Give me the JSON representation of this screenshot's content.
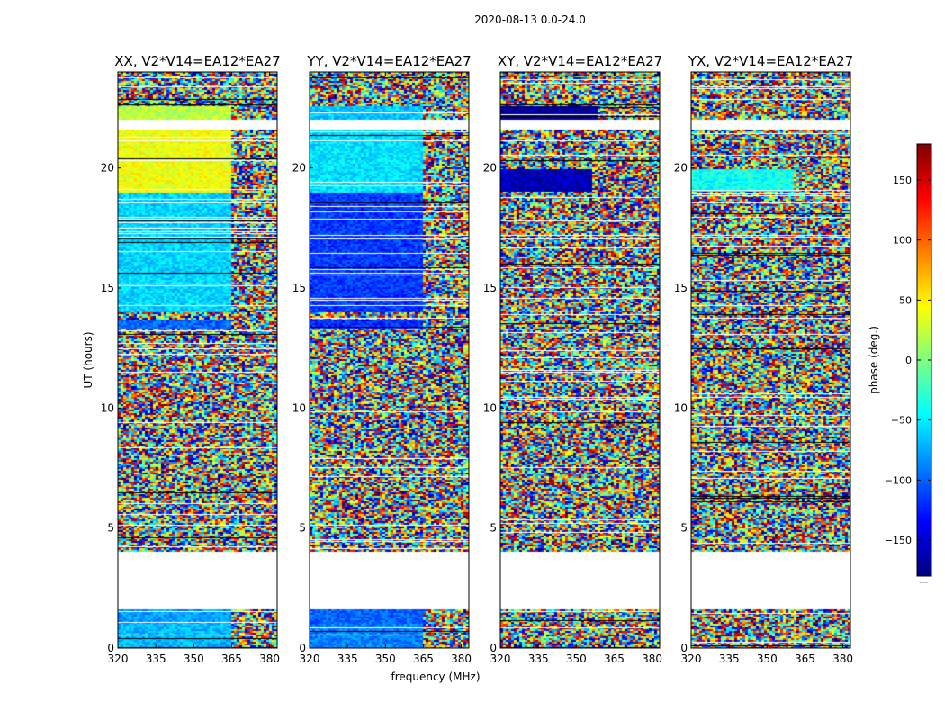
{
  "figure": {
    "suptitle": "2020-08-13 0.0-24.0",
    "xlabel": "frequency (MHz)",
    "ylabel": "UT (hours)",
    "colorbar_label": "phase (deg.)",
    "colorbar_dots": "....."
  },
  "colormap": "jet",
  "chart_data": [
    {
      "type": "heatmap",
      "title": "XX, V2*V14=EA12*EA27",
      "xlim": [
        320,
        383
      ],
      "ylim": [
        0,
        24
      ],
      "xticks": [
        320,
        335,
        350,
        365,
        380
      ],
      "yticks": [
        0,
        5,
        10,
        15,
        20
      ],
      "value_range": [
        -180,
        180
      ],
      "bands": [
        {
          "t": [
            0.0,
            1.0
          ],
          "f_split": 364,
          "low": -70,
          "high": "noise"
        },
        {
          "t": [
            1.0,
            1.6
          ],
          "f_split": 364,
          "low": -80,
          "high": "noise"
        },
        {
          "t": [
            4.0,
            11.0
          ],
          "f_split": 320,
          "low": "noise",
          "high": "noise"
        },
        {
          "t": [
            11.0,
            14.0
          ],
          "f_split": 320,
          "low": "noise",
          "high": "noise"
        },
        {
          "t": [
            13.3,
            13.7
          ],
          "f_split": 364,
          "low": -100,
          "high": "noise"
        },
        {
          "t": [
            14.0,
            19.0
          ],
          "f_split": 364,
          "low": -60,
          "high": "noise"
        },
        {
          "t": [
            19.0,
            21.6
          ],
          "f_split": 364,
          "low": 40,
          "high": "noise"
        },
        {
          "t": [
            22.0,
            22.6
          ],
          "f_split": 364,
          "low": 20,
          "high": "noise"
        },
        {
          "t": [
            22.6,
            24.0
          ],
          "f_split": 320,
          "low": "noise",
          "high": "noise"
        }
      ]
    },
    {
      "type": "heatmap",
      "title": "YY, V2*V14=EA12*EA27",
      "xlim": [
        320,
        383
      ],
      "ylim": [
        0,
        24
      ],
      "xticks": [
        320,
        335,
        350,
        365,
        380
      ],
      "yticks": [
        0,
        5,
        10,
        15,
        20
      ],
      "value_range": [
        -180,
        180
      ],
      "bands": [
        {
          "t": [
            0.0,
            1.0
          ],
          "f_split": 364,
          "low": -90,
          "high": "noise"
        },
        {
          "t": [
            1.0,
            1.6
          ],
          "f_split": 364,
          "low": -100,
          "high": "noise"
        },
        {
          "t": [
            4.0,
            11.0
          ],
          "f_split": 320,
          "low": "noise",
          "high": "noise"
        },
        {
          "t": [
            11.0,
            14.0
          ],
          "f_split": 320,
          "low": "noise",
          "high": "noise"
        },
        {
          "t": [
            13.3,
            13.7
          ],
          "f_split": 364,
          "low": -120,
          "high": "noise"
        },
        {
          "t": [
            14.0,
            19.0
          ],
          "f_split": 364,
          "low": -115,
          "high": "noise"
        },
        {
          "t": [
            19.0,
            21.6
          ],
          "f_split": 364,
          "low": -55,
          "high": "noise"
        },
        {
          "t": [
            22.0,
            22.6
          ],
          "f_split": 364,
          "low": -65,
          "high": "noise"
        },
        {
          "t": [
            22.6,
            24.0
          ],
          "f_split": 320,
          "low": "noise",
          "high": "noise"
        }
      ]
    },
    {
      "type": "heatmap",
      "title": "XY, V2*V14=EA12*EA27",
      "xlim": [
        320,
        383
      ],
      "ylim": [
        0,
        24
      ],
      "xticks": [
        320,
        335,
        350,
        365,
        380
      ],
      "yticks": [
        0,
        5,
        10,
        15,
        20
      ],
      "value_range": [
        -180,
        180
      ],
      "bands": [
        {
          "t": [
            0.0,
            1.6
          ],
          "f_split": 320,
          "low": "noise",
          "high": "noise"
        },
        {
          "t": [
            4.0,
            19.0
          ],
          "f_split": 320,
          "low": "noise",
          "high": "noise"
        },
        {
          "t": [
            19.0,
            20.0
          ],
          "f_split": 356,
          "low": -160,
          "high": "noise"
        },
        {
          "t": [
            20.0,
            21.6
          ],
          "f_split": 320,
          "low": "noise",
          "high": "noise"
        },
        {
          "t": [
            22.0,
            22.6
          ],
          "f_split": 358,
          "low": -170,
          "high": "noise"
        },
        {
          "t": [
            22.6,
            24.0
          ],
          "f_split": 320,
          "low": "noise",
          "high": "noise"
        }
      ]
    },
    {
      "type": "heatmap",
      "title": "YX, V2*V14=EA12*EA27",
      "xlim": [
        320,
        383
      ],
      "ylim": [
        0,
        24
      ],
      "xticks": [
        320,
        335,
        350,
        365,
        380
      ],
      "yticks": [
        0,
        5,
        10,
        15,
        20
      ],
      "value_range": [
        -180,
        180
      ],
      "bands": [
        {
          "t": [
            0.0,
            1.6
          ],
          "f_split": 320,
          "low": "noise",
          "high": "noise"
        },
        {
          "t": [
            4.0,
            19.0
          ],
          "f_split": 320,
          "low": "noise",
          "high": "noise"
        },
        {
          "t": [
            19.0,
            20.0
          ],
          "f_split": 360,
          "low": -40,
          "high": "noise"
        },
        {
          "t": [
            20.0,
            21.6
          ],
          "f_split": 320,
          "low": "noise",
          "high": "noise"
        },
        {
          "t": [
            22.0,
            22.6
          ],
          "f_split": 320,
          "low": "noise",
          "high": "noise"
        },
        {
          "t": [
            22.6,
            24.0
          ],
          "f_split": 320,
          "low": "noise",
          "high": "noise"
        }
      ]
    },
    {
      "type": "colorbar",
      "ylim": [
        -180,
        180
      ],
      "yticks": [
        -150,
        -100,
        -50,
        0,
        50,
        100,
        150
      ],
      "label": "phase (deg.)"
    }
  ]
}
